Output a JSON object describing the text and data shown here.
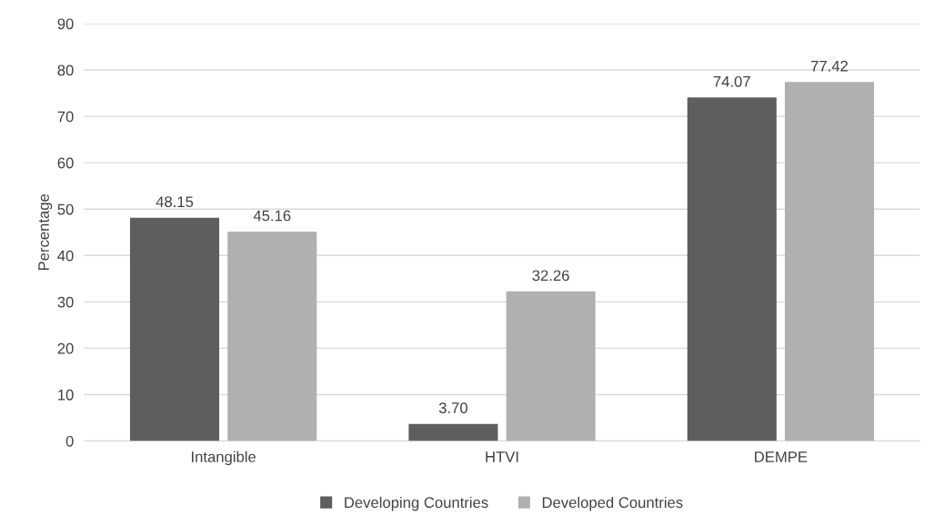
{
  "chart_data": {
    "type": "bar",
    "ylabel": "Percentage",
    "categories": [
      "Intangible",
      "HTVI",
      "DEMPE"
    ],
    "series": [
      {
        "name": "Developing Countries",
        "color": "#5e5e5e",
        "values": [
          48.15,
          3.7,
          74.07
        ],
        "value_labels": [
          "48.15",
          "3.70",
          "74.07"
        ]
      },
      {
        "name": "Developed Countries",
        "color": "#b0b0b0",
        "values": [
          45.16,
          32.26,
          77.42
        ],
        "value_labels": [
          "45.16",
          "32.26",
          "77.42"
        ]
      }
    ],
    "ylim": [
      0,
      90
    ],
    "yticks": [
      0,
      10,
      20,
      30,
      40,
      50,
      60,
      70,
      80,
      90
    ],
    "grid": "y",
    "legend": "bottom"
  }
}
